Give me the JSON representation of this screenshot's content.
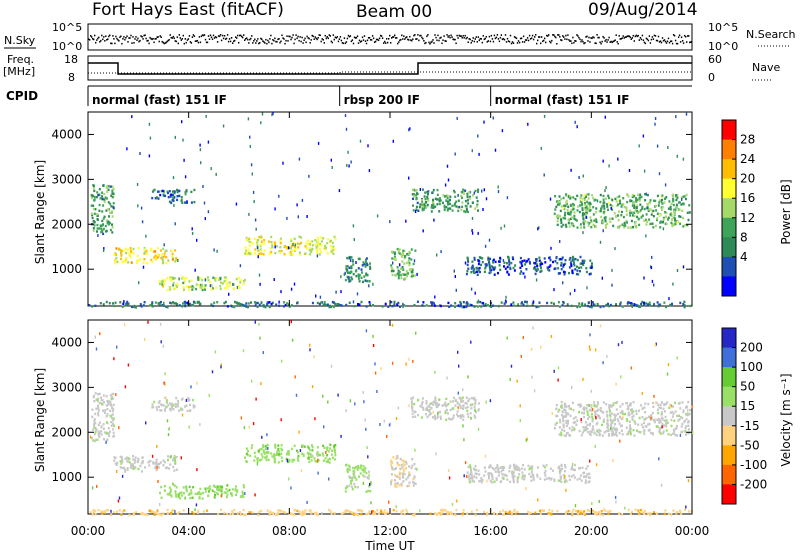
{
  "header": {
    "station": "Fort Hays East (fitACF)",
    "beam": "Beam 00",
    "date": "09/Aug/2014"
  },
  "strip": {
    "nsky_label": "N.Sky",
    "nsky_ticks": [
      "10^5",
      "10^0"
    ],
    "nsearch_label": "N.Search",
    "nsearch_ticks": [
      "10^5",
      "10^0"
    ],
    "freq_label_top": "Freq.",
    "freq_label_unit": "[MHz]",
    "freq_ticks": [
      "18",
      "8"
    ],
    "nave_label": "Nave",
    "nave_ticks": [
      "60",
      "0"
    ],
    "cpid_label": "CPID",
    "cpid_segments": [
      {
        "label": "normal (fast) 151 IF",
        "start_h": 0,
        "end_h": 10
      },
      {
        "label": "rbsp 200 IF",
        "start_h": 10,
        "end_h": 16
      },
      {
        "label": "normal (fast) 151 IF",
        "start_h": 16,
        "end_h": 24
      }
    ]
  },
  "xaxis": {
    "title": "Time UT",
    "ticks": [
      "00:00",
      "04:00",
      "08:00",
      "12:00",
      "16:00",
      "20:00",
      "00:00"
    ]
  },
  "panels": {
    "ylabel": "Slant Range [km]",
    "power_colorbar": {
      "label": "Power [dB]",
      "ticks": [
        "28",
        "24",
        "20",
        "16",
        "12",
        "8",
        "4"
      ],
      "colors": [
        "#ff0000",
        "#ff7f00",
        "#ffbf00",
        "#ffff33",
        "#a6d96a",
        "#3fa35a",
        "#2e8b57",
        "#1f4fb4",
        "#0000ff"
      ]
    },
    "velocity_colorbar": {
      "label": "Velocity [m s⁻¹]",
      "ticks": [
        "200",
        "100",
        "50",
        "15",
        "-15",
        "-50",
        "-100",
        "-200"
      ],
      "colors": [
        "#2727c8",
        "#3f6fd8",
        "#66cc33",
        "#99e066",
        "#c8c8c8",
        "#ffd27f",
        "#ffa500",
        "#ff6600",
        "#ff0000"
      ]
    }
  },
  "chart_data": {
    "type": "heatmap",
    "x_range_hours": [
      0,
      24
    ],
    "y_range_km": [
      180,
      4500
    ],
    "y_ticks": [
      1000,
      2000,
      3000,
      4000
    ],
    "echo_regions": [
      {
        "t0": 0.1,
        "t1": 1.0,
        "r0": 1800,
        "r1": 2900,
        "power": 10,
        "vel": 0
      },
      {
        "t0": 1.0,
        "t1": 3.5,
        "r0": 1150,
        "r1": 1500,
        "power": 20,
        "vel": 0
      },
      {
        "t0": 2.5,
        "t1": 4.2,
        "r0": 2500,
        "r1": 2800,
        "power": 6,
        "vel": 0
      },
      {
        "t0": 2.8,
        "t1": 6.2,
        "r0": 550,
        "r1": 850,
        "power": 16,
        "vel": 30
      },
      {
        "t0": 6.2,
        "t1": 9.8,
        "r0": 1350,
        "r1": 1750,
        "power": 18,
        "vel": 30
      },
      {
        "t0": 10.2,
        "t1": 11.2,
        "r0": 700,
        "r1": 1300,
        "power": 8,
        "vel": 20
      },
      {
        "t0": 12.0,
        "t1": 13.0,
        "r0": 800,
        "r1": 1500,
        "power": 12,
        "vel": -10
      },
      {
        "t0": 12.8,
        "t1": 15.5,
        "r0": 2300,
        "r1": 2800,
        "power": 10,
        "vel": 0
      },
      {
        "t0": 15.0,
        "t1": 20.0,
        "r0": 900,
        "r1": 1300,
        "power": 4,
        "vel": 0
      },
      {
        "t0": 18.5,
        "t1": 23.9,
        "r0": 1950,
        "r1": 2700,
        "power": 12,
        "vel": 0
      },
      {
        "t0": 0.0,
        "t1": 24.0,
        "r0": 180,
        "r1": 300,
        "power": 6,
        "vel": -40
      }
    ]
  }
}
